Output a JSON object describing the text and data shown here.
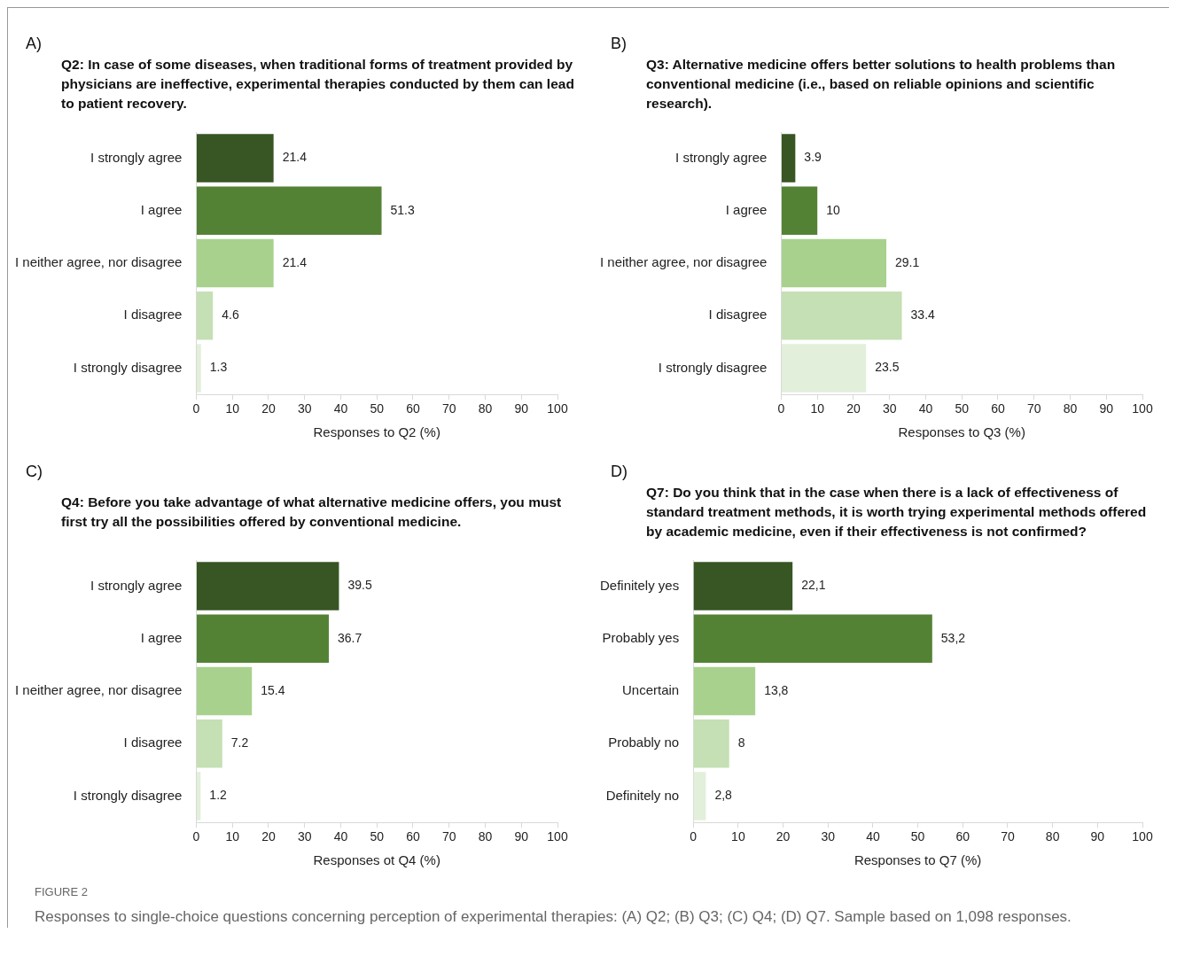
{
  "chart_data": [
    {
      "type": "bar",
      "orientation": "horizontal",
      "subtitle": "A)",
      "title": "Q2: In case of some diseases, when traditional forms of treatment provided by physicians are ineffective, experimental therapies conducted by them can lead to patient recovery.",
      "xlabel": "Responses to Q2 (%)",
      "categories": [
        "I strongly agree",
        "I agree",
        "I neither agree, nor disagree",
        "I disagree",
        "I strongly disagree"
      ],
      "values": [
        21.4,
        51.3,
        21.4,
        4.6,
        1.3
      ],
      "colors": [
        "#375623",
        "#548235",
        "#a9d18e",
        "#c5e0b4",
        "#e2efda"
      ],
      "xlim": [
        0,
        100
      ],
      "xticks": [
        0,
        10,
        20,
        30,
        40,
        50,
        60,
        70,
        80,
        90,
        100
      ],
      "data_labels": true
    },
    {
      "type": "bar",
      "orientation": "horizontal",
      "subtitle": "B)",
      "title": "Q3: Alternative medicine offers better solutions to health problems than conventional medicine (i.e., based on reliable opinions and scientific research).",
      "xlabel": "Responses to Q3 (%)",
      "categories": [
        "I strongly agree",
        "I agree",
        "I neither agree, nor disagree",
        "I disagree",
        "I strongly disagree"
      ],
      "values": [
        3.9,
        10,
        29.1,
        33.4,
        23.5
      ],
      "colors": [
        "#375623",
        "#548235",
        "#a9d18e",
        "#c5e0b4",
        "#e2efda"
      ],
      "xlim": [
        0,
        100
      ],
      "xticks": [
        0,
        10,
        20,
        30,
        40,
        50,
        60,
        70,
        80,
        90,
        100
      ],
      "data_labels": true
    },
    {
      "type": "bar",
      "orientation": "horizontal",
      "subtitle": "C)",
      "title": "Q4: Before you take advantage of what alternative medicine offers, you must first try all the possibilities offered by conventional medicine.",
      "xlabel": "Responses ot Q4 (%)",
      "categories": [
        "I strongly agree",
        "I agree",
        "I neither agree, nor disagree",
        "I disagree",
        "I strongly disagree"
      ],
      "values": [
        39.5,
        36.7,
        15.4,
        7.2,
        1.2
      ],
      "colors": [
        "#375623",
        "#548235",
        "#a9d18e",
        "#c5e0b4",
        "#e2efda"
      ],
      "xlim": [
        0,
        100
      ],
      "xticks": [
        0,
        10,
        20,
        30,
        40,
        50,
        60,
        70,
        80,
        90,
        100
      ],
      "data_labels": true
    },
    {
      "type": "bar",
      "orientation": "horizontal",
      "subtitle": "D)",
      "title": "Q7: Do you think that in the case when there is a lack of effectiveness of standard treatment methods, it is worth trying experimental methods offered by academic medicine, even if their effectiveness is not confirmed?",
      "xlabel": "Responses to Q7 (%)",
      "categories": [
        "Definitely yes",
        "Probably yes",
        "Uncertain",
        "Probably no",
        "Definitely no"
      ],
      "values": [
        22.1,
        53.2,
        13.8,
        8,
        2.8
      ],
      "value_labels": [
        "22,1",
        "53,2",
        "13,8",
        "8",
        "2,8"
      ],
      "colors": [
        "#375623",
        "#548235",
        "#a9d18e",
        "#c5e0b4",
        "#e2efda"
      ],
      "xlim": [
        0,
        100
      ],
      "xticks": [
        0,
        10,
        20,
        30,
        40,
        50,
        60,
        70,
        80,
        90,
        100
      ],
      "annotations": [
        "FIGURE 2",
        "Responses to single-choice questions concerning perception of experimental therapies: (A) Q2; (B) Q3; (C) Q4; (D) Q7. Sample based on 1,098 responses."
      ]
    }
  ]
}
